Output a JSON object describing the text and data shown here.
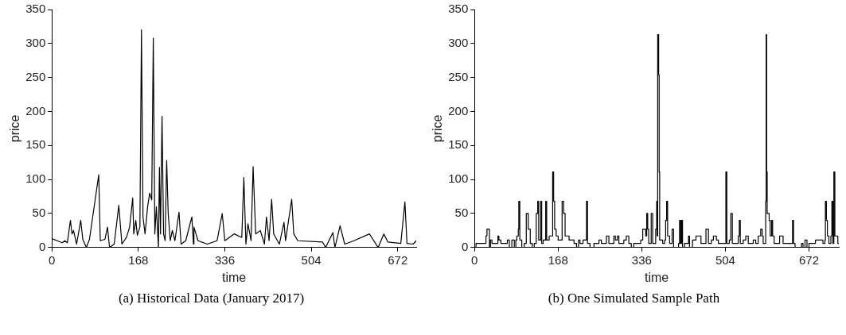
{
  "chart_data": [
    {
      "type": "line",
      "title": "(a) Historical Data (January 2017)",
      "xlabel": "time",
      "ylabel": "price",
      "xlim": [
        0,
        708
      ],
      "xticks": [
        0,
        168,
        336,
        504,
        672
      ],
      "ylim": [
        0,
        350
      ],
      "yticks": [
        0,
        50,
        100,
        150,
        200,
        250,
        300,
        350
      ],
      "series": [
        {
          "color": "#000000",
          "x": [
            0,
            10,
            20,
            25,
            30,
            36,
            39,
            42,
            45,
            48,
            56,
            60,
            67,
            73,
            91,
            94,
            103,
            108,
            112,
            121,
            130,
            136,
            145,
            151,
            157,
            159,
            163,
            166,
            171,
            174,
            177,
            181,
            186,
            190,
            194,
            197,
            200,
            203,
            207,
            209,
            211,
            214,
            217,
            220,
            223,
            226,
            230,
            234,
            239,
            247,
            251,
            260,
            272,
            275,
            276,
            284,
            302,
            321,
            331,
            336,
            354,
            369,
            373,
            377,
            381,
            387,
            391,
            396,
            405,
            413,
            417,
            422,
            427,
            431,
            442,
            451,
            454,
            466,
            470,
            478,
            526,
            532,
            546,
            550,
            560,
            569,
            587,
            617,
            634,
            645,
            653,
            678,
            686,
            690,
            702,
            708
          ],
          "values": [
            13,
            10,
            7,
            10,
            7,
            40,
            20,
            25,
            15,
            5,
            40,
            12,
            0,
            12,
            107,
            10,
            12,
            30,
            0,
            5,
            62,
            5,
            15,
            30,
            73,
            20,
            40,
            18,
            30,
            320,
            45,
            20,
            60,
            80,
            70,
            308,
            20,
            60,
            0,
            118,
            20,
            193,
            20,
            10,
            128,
            50,
            10,
            25,
            10,
            52,
            5,
            10,
            45,
            5,
            30,
            10,
            5,
            10,
            50,
            10,
            20,
            15,
            103,
            5,
            35,
            10,
            119,
            20,
            25,
            5,
            45,
            10,
            71,
            20,
            5,
            37,
            10,
            71,
            20,
            10,
            8,
            0,
            22,
            0,
            32,
            5,
            10,
            20,
            0,
            20,
            8,
            6,
            67,
            6,
            5,
            10
          ]
        }
      ]
    },
    {
      "type": "step",
      "title": "(b) One Simulated Sample Path",
      "xlabel": "time",
      "ylabel": "price",
      "xlim": [
        0,
        732
      ],
      "xticks": [
        0,
        168,
        336,
        504,
        672
      ],
      "ylim": [
        0,
        350
      ],
      "yticks": [
        0,
        50,
        100,
        150,
        200,
        250,
        300,
        350
      ],
      "series": [
        {
          "color": "#000000",
          "x": [
            0,
            3,
            22,
            23,
            25,
            29,
            30,
            32,
            35,
            40,
            47,
            49,
            53,
            63,
            66,
            70,
            73,
            75,
            80,
            83,
            85,
            88,
            89,
            91,
            95,
            100,
            104,
            106,
            108,
            112,
            116,
            120,
            124,
            127,
            129,
            133,
            135,
            138,
            143,
            145,
            150,
            157,
            159,
            161,
            164,
            168,
            176,
            179,
            182,
            190,
            200,
            205,
            209,
            212,
            218,
            225,
            227,
            232,
            240,
            250,
            255,
            265,
            270,
            280,
            283,
            287,
            290,
            300,
            305,
            310,
            315,
            320,
            330,
            334,
            338,
            342,
            344,
            346,
            348,
            350,
            355,
            358,
            362,
            364,
            366,
            367,
            368,
            370,
            371,
            372,
            378,
            382,
            384,
            386,
            388,
            392,
            397,
            400,
            407,
            410,
            412,
            414,
            416,
            418,
            422,
            430,
            432,
            438,
            445,
            450,
            455,
            462,
            465,
            468,
            470,
            476,
            480,
            484,
            486,
            490,
            502,
            505,
            507,
            512,
            515,
            518,
            525,
            530,
            532,
            534,
            540,
            545,
            550,
            556,
            560,
            565,
            570,
            575,
            578,
            580,
            585,
            586,
            587,
            588,
            590,
            592,
            594,
            597,
            599,
            602,
            610,
            613,
            620,
            637,
            639,
            641,
            644,
            655,
            657,
            660,
            664,
            668,
            672,
            680,
            685,
            700,
            704,
            705,
            707,
            709,
            712,
            716,
            718,
            720,
            722,
            724,
            730,
            732
          ],
          "values": [
            0,
            6,
            6,
            17,
            27,
            27,
            0,
            11,
            6,
            6,
            17,
            11,
            6,
            6,
            11,
            0,
            0,
            11,
            0,
            11,
            17,
            27,
            68,
            11,
            0,
            6,
            50,
            50,
            27,
            6,
            0,
            6,
            50,
            68,
            11,
            68,
            6,
            11,
            68,
            11,
            17,
            111,
            68,
            27,
            17,
            11,
            68,
            50,
            17,
            11,
            6,
            0,
            11,
            6,
            11,
            68,
            6,
            0,
            6,
            11,
            6,
            17,
            6,
            17,
            11,
            17,
            6,
            11,
            17,
            6,
            0,
            6,
            6,
            11,
            27,
            27,
            17,
            50,
            27,
            6,
            50,
            6,
            6,
            27,
            68,
            17,
            313,
            254,
            111,
            11,
            6,
            11,
            40,
            68,
            17,
            6,
            27,
            0,
            0,
            6,
            40,
            6,
            40,
            0,
            6,
            17,
            0,
            11,
            17,
            17,
            6,
            6,
            27,
            27,
            6,
            11,
            17,
            17,
            11,
            6,
            6,
            111,
            6,
            11,
            50,
            6,
            6,
            17,
            40,
            6,
            11,
            17,
            6,
            6,
            11,
            6,
            17,
            27,
            17,
            6,
            68,
            313,
            111,
            50,
            50,
            40,
            17,
            40,
            17,
            6,
            6,
            17,
            6,
            6,
            40,
            6,
            0,
            0,
            6,
            0,
            11,
            0,
            6,
            6,
            11,
            6,
            11,
            68,
            40,
            17,
            6,
            17,
            68,
            6,
            111,
            17,
            6,
            6
          ]
        }
      ]
    }
  ]
}
